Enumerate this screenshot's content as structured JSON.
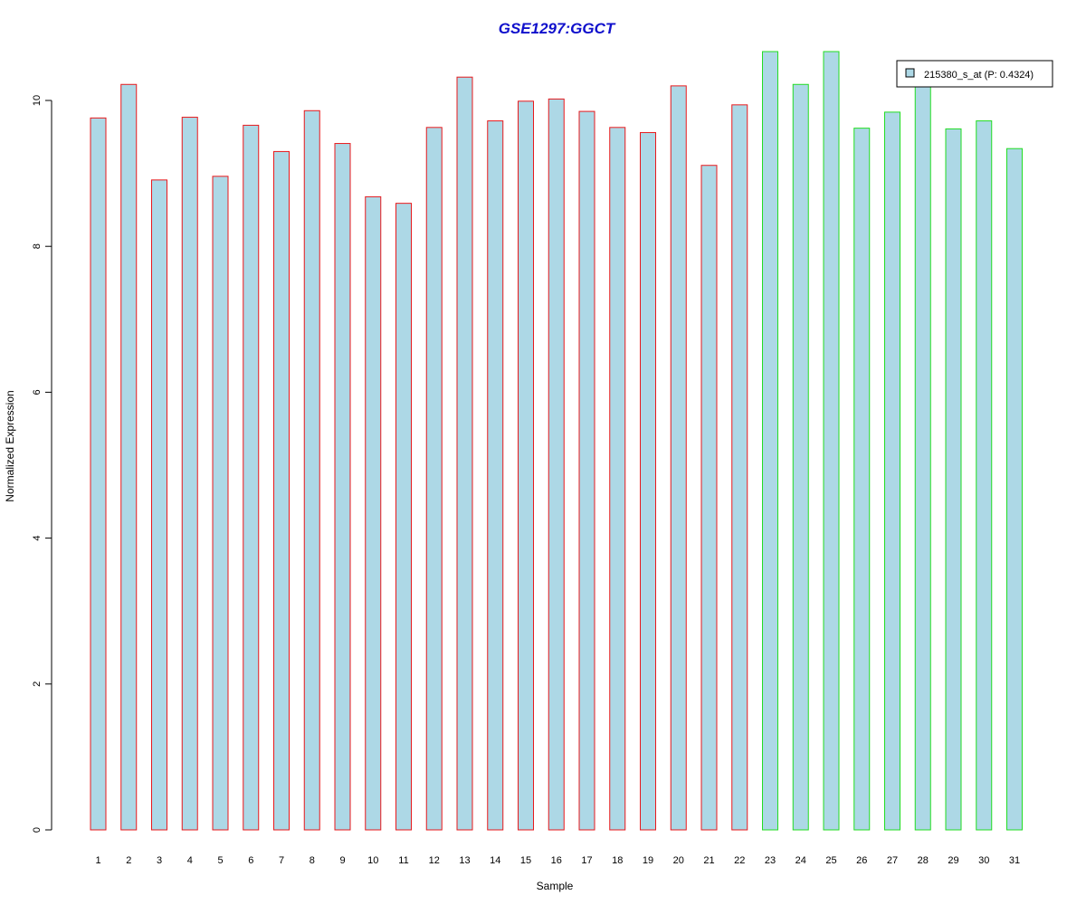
{
  "chart_data": {
    "type": "bar",
    "title": "GSE1297:GGCT",
    "xlabel": "Sample",
    "ylabel": "Normalized Expression",
    "categories": [
      "1",
      "2",
      "3",
      "4",
      "5",
      "6",
      "7",
      "8",
      "9",
      "10",
      "11",
      "12",
      "13",
      "14",
      "15",
      "16",
      "17",
      "18",
      "19",
      "20",
      "21",
      "22",
      "23",
      "24",
      "25",
      "26",
      "27",
      "28",
      "29",
      "30",
      "31"
    ],
    "values": [
      9.76,
      10.22,
      8.91,
      9.77,
      8.96,
      9.66,
      9.3,
      9.86,
      9.41,
      8.68,
      8.59,
      9.63,
      10.32,
      9.72,
      9.99,
      10.02,
      9.85,
      9.63,
      9.56,
      10.2,
      9.11,
      9.94,
      10.67,
      10.22,
      10.67,
      9.62,
      9.84,
      10.26,
      9.61,
      9.72,
      9.34
    ],
    "groups": [
      "red",
      "red",
      "red",
      "red",
      "red",
      "red",
      "red",
      "red",
      "red",
      "red",
      "red",
      "red",
      "red",
      "red",
      "red",
      "red",
      "red",
      "red",
      "red",
      "red",
      "red",
      "red",
      "green",
      "green",
      "green",
      "green",
      "green",
      "green",
      "green",
      "green",
      "green"
    ],
    "ylim": [
      0,
      10.8
    ],
    "yticks": [
      0,
      2,
      4,
      6,
      8,
      10
    ],
    "grid": false,
    "legend": {
      "placement": "top-right",
      "entries": [
        "215380_s_at (P: 0.4324)"
      ]
    },
    "colors": {
      "title": "#1010cc",
      "bar_fill": "#add8e6",
      "border_group_1": "#e8191c",
      "border_group_2": "#22dd22"
    }
  }
}
